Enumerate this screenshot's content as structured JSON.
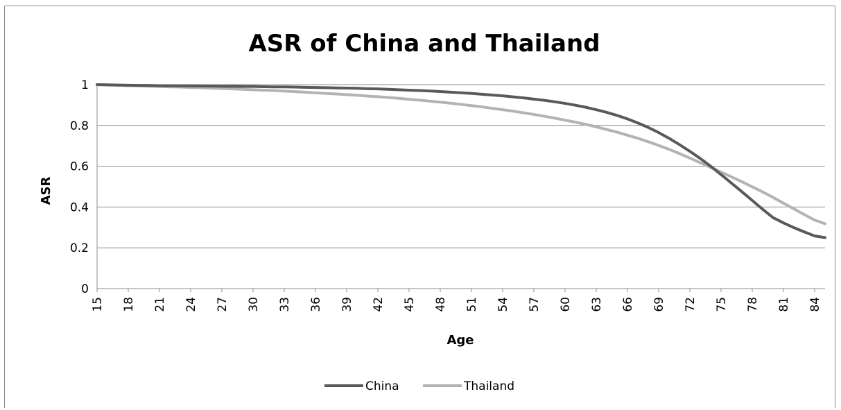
{
  "chart_data": {
    "type": "line",
    "title": "ASR of China and Thailand",
    "xlabel": "Age",
    "ylabel": "ASR",
    "ylim": [
      0,
      1
    ],
    "y_ticks": [
      "0",
      "0.2",
      "0.4",
      "0.6",
      "0.8",
      "1"
    ],
    "x_tick_labels": [
      "15",
      "18",
      "21",
      "24",
      "27",
      "30",
      "33",
      "36",
      "39",
      "42",
      "45",
      "48",
      "51",
      "54",
      "57",
      "60",
      "63",
      "66",
      "69",
      "72",
      "75",
      "78",
      "81",
      "84"
    ],
    "x": [
      15,
      16,
      17,
      18,
      19,
      20,
      21,
      22,
      23,
      24,
      25,
      26,
      27,
      28,
      29,
      30,
      31,
      32,
      33,
      34,
      35,
      36,
      37,
      38,
      39,
      40,
      41,
      42,
      43,
      44,
      45,
      46,
      47,
      48,
      49,
      50,
      51,
      52,
      53,
      54,
      55,
      56,
      57,
      58,
      59,
      60,
      61,
      62,
      63,
      64,
      65,
      66,
      67,
      68,
      69,
      70,
      71,
      72,
      73,
      74,
      75,
      76,
      77,
      78,
      79,
      80,
      81,
      82,
      83,
      84,
      85
    ],
    "series": [
      {
        "name": "China",
        "color": "#595959",
        "values": [
          1.0,
          0.999,
          0.998,
          0.997,
          0.996,
          0.996,
          0.995,
          0.995,
          0.994,
          0.994,
          0.993,
          0.993,
          0.992,
          0.992,
          0.991,
          0.991,
          0.99,
          0.989,
          0.989,
          0.988,
          0.987,
          0.986,
          0.985,
          0.984,
          0.983,
          0.982,
          0.98,
          0.979,
          0.977,
          0.975,
          0.973,
          0.971,
          0.969,
          0.966,
          0.963,
          0.96,
          0.957,
          0.953,
          0.949,
          0.945,
          0.94,
          0.935,
          0.929,
          0.923,
          0.916,
          0.908,
          0.899,
          0.889,
          0.877,
          0.864,
          0.849,
          0.832,
          0.812,
          0.79,
          0.765,
          0.737,
          0.706,
          0.673,
          0.638,
          0.6,
          0.559,
          0.517,
          0.475,
          0.432,
          0.389,
          0.348,
          0.322,
          0.299,
          0.278,
          0.258,
          0.25
        ]
      },
      {
        "name": "Thailand",
        "color": "#b3b3b3",
        "values": [
          1.0,
          0.998,
          0.997,
          0.995,
          0.994,
          0.992,
          0.991,
          0.989,
          0.988,
          0.986,
          0.985,
          0.983,
          0.981,
          0.979,
          0.977,
          0.975,
          0.973,
          0.971,
          0.968,
          0.966,
          0.963,
          0.96,
          0.957,
          0.954,
          0.951,
          0.948,
          0.944,
          0.941,
          0.937,
          0.933,
          0.928,
          0.924,
          0.919,
          0.914,
          0.909,
          0.903,
          0.897,
          0.891,
          0.884,
          0.877,
          0.87,
          0.862,
          0.854,
          0.845,
          0.836,
          0.826,
          0.816,
          0.805,
          0.793,
          0.78,
          0.767,
          0.752,
          0.737,
          0.72,
          0.702,
          0.683,
          0.662,
          0.64,
          0.617,
          0.594,
          0.571,
          0.548,
          0.524,
          0.499,
          0.474,
          0.447,
          0.419,
          0.391,
          0.363,
          0.336,
          0.318
        ]
      }
    ],
    "legend_position": "bottom",
    "grid": true
  }
}
